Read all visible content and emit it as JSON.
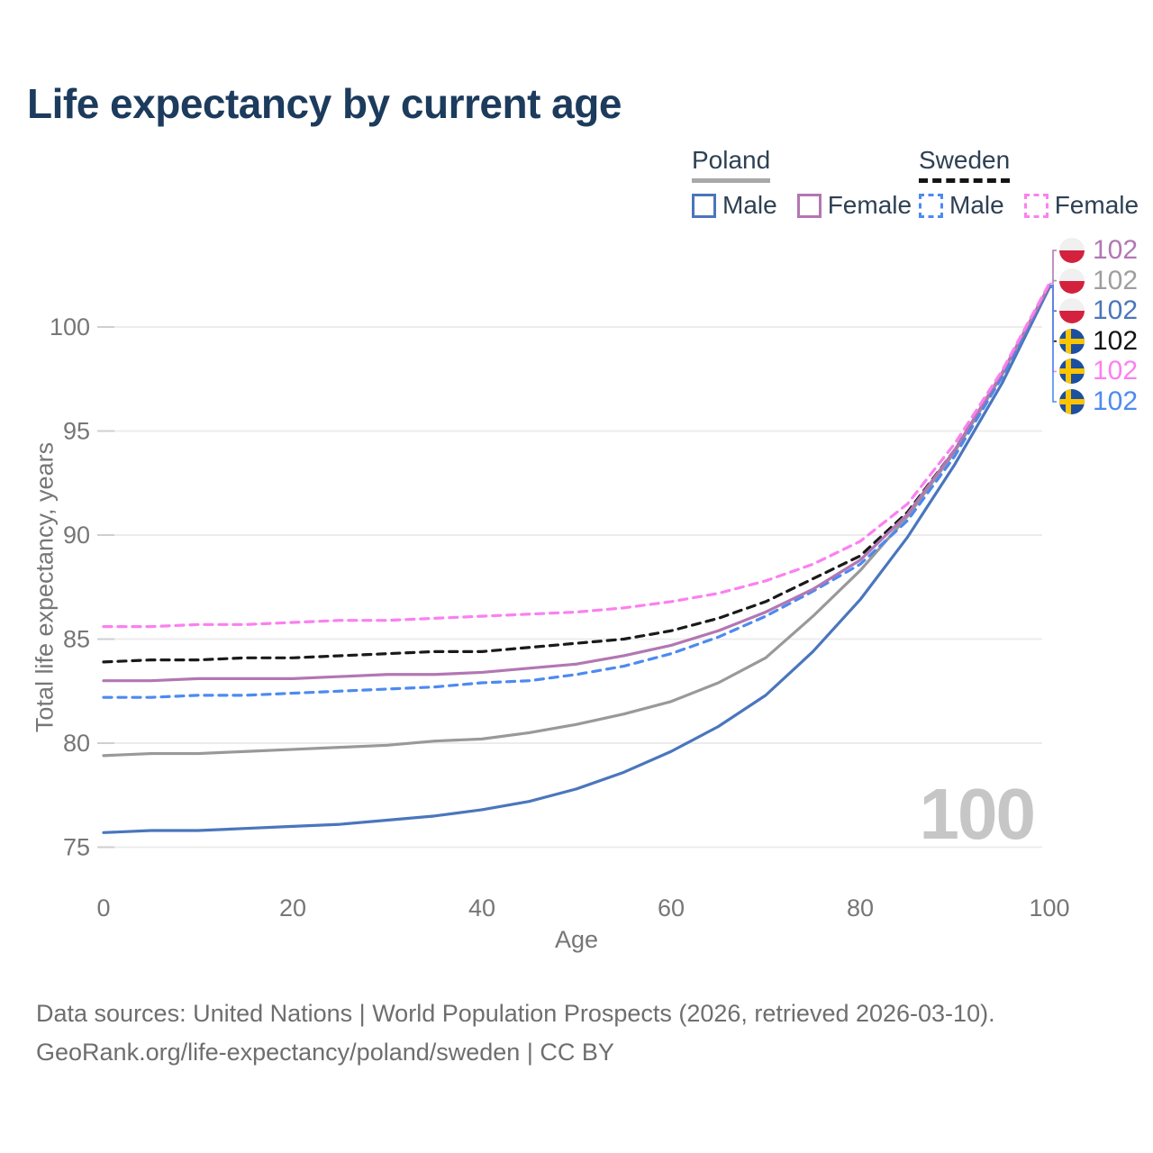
{
  "title": "Life expectancy by current age",
  "legend": {
    "groups": [
      {
        "label": "Poland",
        "underline_style": "solid",
        "underline_color": "#a8a8a8",
        "items": [
          {
            "label": "Male",
            "color": "#4a76bc",
            "dashed": false
          },
          {
            "label": "Female",
            "color": "#b277b2",
            "dashed": false
          }
        ]
      },
      {
        "label": "Sweden",
        "underline_style": "dashed",
        "underline_color": "#141414",
        "items": [
          {
            "label": "Male",
            "color": "#4d8af0",
            "dashed": true
          },
          {
            "label": "Female",
            "color": "#fb80f0",
            "dashed": true
          }
        ]
      }
    ]
  },
  "chart_data": {
    "type": "line",
    "title": "Life expectancy by current age",
    "xlabel": "Age",
    "ylabel": "Total life expectancy, years",
    "xlim": [
      0,
      100
    ],
    "ylim": [
      75,
      102.5
    ],
    "xticks": [
      0,
      20,
      40,
      60,
      80,
      100
    ],
    "yticks": [
      75,
      80,
      85,
      90,
      95,
      100
    ],
    "grid": "horizontal",
    "legend_position": "top-right",
    "x": [
      0,
      5,
      10,
      15,
      20,
      25,
      30,
      35,
      40,
      45,
      50,
      55,
      60,
      65,
      70,
      75,
      80,
      85,
      90,
      95,
      100
    ],
    "series": [
      {
        "id": "poland-total",
        "name": "Poland",
        "country": "Poland",
        "sex": "both",
        "color": "#999999",
        "dashed": false,
        "values": [
          79.4,
          79.5,
          79.5,
          79.6,
          79.7,
          79.8,
          79.9,
          80.1,
          80.2,
          80.5,
          80.9,
          81.4,
          82.0,
          82.9,
          84.1,
          86.1,
          88.3,
          90.9,
          94.0,
          97.7,
          102.0
        ]
      },
      {
        "id": "poland-male",
        "name": "Poland Male",
        "country": "Poland",
        "sex": "male",
        "color": "#4a76bc",
        "dashed": false,
        "values": [
          75.7,
          75.8,
          75.8,
          75.9,
          76.0,
          76.1,
          76.3,
          76.5,
          76.8,
          77.2,
          77.8,
          78.6,
          79.6,
          80.8,
          82.3,
          84.4,
          86.9,
          89.9,
          93.4,
          97.3,
          101.9
        ]
      },
      {
        "id": "sweden-male",
        "name": "Sweden Male",
        "country": "Sweden",
        "sex": "male",
        "color": "#4d8af0",
        "dashed": true,
        "values": [
          82.2,
          82.2,
          82.3,
          82.3,
          82.4,
          82.5,
          82.6,
          82.7,
          82.9,
          83.0,
          83.3,
          83.7,
          84.3,
          85.1,
          86.1,
          87.3,
          88.6,
          90.7,
          93.8,
          97.6,
          102.0
        ]
      },
      {
        "id": "sweden-total",
        "name": "Sweden",
        "country": "Sweden",
        "sex": "both",
        "color": "#1a1a1a",
        "dashed": true,
        "values": [
          83.9,
          84.0,
          84.0,
          84.1,
          84.1,
          84.2,
          84.3,
          84.4,
          84.4,
          84.6,
          84.8,
          85.0,
          85.4,
          86.0,
          86.8,
          87.9,
          89.0,
          91.1,
          94.1,
          97.8,
          102.0
        ]
      },
      {
        "id": "poland-female",
        "name": "Poland Female",
        "country": "Poland",
        "sex": "female",
        "color": "#b277b2",
        "dashed": false,
        "values": [
          83.0,
          83.0,
          83.1,
          83.1,
          83.1,
          83.2,
          83.3,
          83.3,
          83.4,
          83.6,
          83.8,
          84.2,
          84.7,
          85.4,
          86.3,
          87.4,
          88.8,
          91.0,
          94.1,
          97.8,
          102.0
        ]
      },
      {
        "id": "sweden-female",
        "name": "Sweden Female",
        "country": "Sweden",
        "sex": "female",
        "color": "#fb80f0",
        "dashed": true,
        "values": [
          85.6,
          85.6,
          85.7,
          85.7,
          85.8,
          85.9,
          85.9,
          86.0,
          86.1,
          86.2,
          86.3,
          86.5,
          86.8,
          87.2,
          87.8,
          88.6,
          89.7,
          91.5,
          94.4,
          97.9,
          102.1
        ]
      }
    ]
  },
  "end_labels": [
    {
      "series_id": "poland-female",
      "flag": "poland",
      "value": "102",
      "color": "#b277b2"
    },
    {
      "series_id": "poland-total",
      "flag": "poland",
      "value": "102",
      "color": "#9e9e9e"
    },
    {
      "series_id": "poland-male",
      "flag": "poland",
      "value": "102",
      "color": "#4a76bc"
    },
    {
      "series_id": "sweden-total",
      "flag": "sweden",
      "value": "102",
      "color": "#141414"
    },
    {
      "series_id": "sweden-female",
      "flag": "sweden",
      "value": "102",
      "color": "#fb80f0"
    },
    {
      "series_id": "sweden-male",
      "flag": "sweden",
      "value": "102",
      "color": "#4d8af0"
    }
  ],
  "flag_colors": {
    "poland": {
      "top": "#f0f0f1",
      "bottom": "#d4213d"
    },
    "sweden": {
      "field": "#1d4f9f",
      "cross": "#fdc500"
    }
  },
  "watermark": "100",
  "footer": {
    "line1": "Data sources: United Nations | World Population Prospects (2026, retrieved 2026-03-10).",
    "line2": "GeoRank.org/life-expectancy/poland/sweden | CC BY"
  }
}
